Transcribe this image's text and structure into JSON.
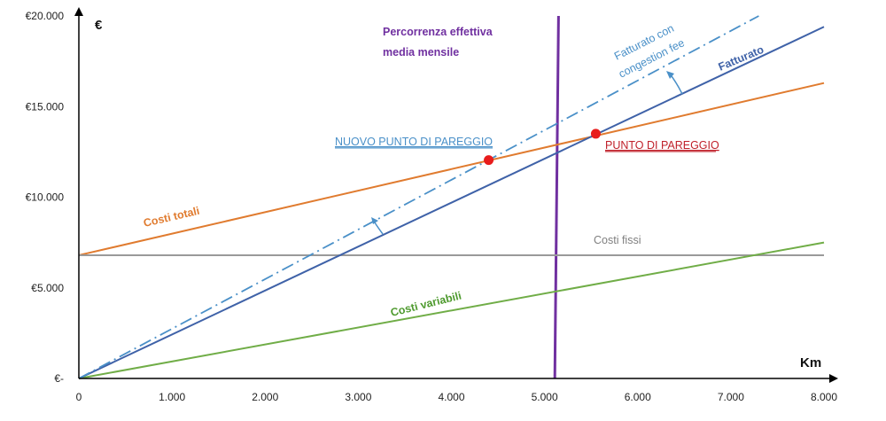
{
  "chart_data": {
    "type": "line",
    "xlabel": "Km",
    "ylabel": "€",
    "xlim": [
      0,
      8000
    ],
    "ylim": [
      0,
      20000
    ],
    "x_ticks": [
      0,
      1000,
      2000,
      3000,
      4000,
      5000,
      6000,
      7000,
      8000
    ],
    "x_tick_labels": [
      "0",
      "1.000",
      "2.000",
      "3.000",
      "4.000",
      "5.000",
      "6.000",
      "7.000",
      "8.000"
    ],
    "y_ticks": [
      0,
      5000,
      10000,
      15000,
      20000
    ],
    "y_tick_labels": [
      "€-",
      "€5.000",
      "€10.000",
      "€15.000",
      "€20.000"
    ],
    "series": [
      {
        "name": "Costi totali",
        "color": "#E07B2F",
        "style": "solid",
        "x": [
          0,
          8000
        ],
        "y": [
          6800,
          16300
        ]
      },
      {
        "name": "Costi fissi",
        "color": "#9A9A9A",
        "style": "solid",
        "x": [
          0,
          8000
        ],
        "y": [
          6800,
          6800
        ]
      },
      {
        "name": "Costi variabili",
        "color": "#70AD47",
        "style": "solid",
        "x": [
          0,
          8000
        ],
        "y": [
          0,
          7500
        ]
      },
      {
        "name": "Fatturato",
        "color": "#3F62A8",
        "style": "solid",
        "x": [
          0,
          8000
        ],
        "y": [
          0,
          19400
        ]
      },
      {
        "name": "Fatturato con congestion fee",
        "color": "#4A90C8",
        "style": "dashdot",
        "x": [
          0,
          7300
        ],
        "y": [
          0,
          20000
        ]
      }
    ],
    "vertical_line": {
      "label_lines": [
        "Percorrenza effettiva",
        "media mensile"
      ],
      "color": "#7030A0",
      "x": [
        5150,
        5110
      ]
    },
    "points": [
      {
        "label": "NUOVO PUNTO DI PAREGGIO",
        "x": 4400,
        "y": 12050,
        "color": "#E81C1C",
        "label_color": "#4A90C8"
      },
      {
        "label": "PUNTO DI PAREGGIO",
        "x": 5550,
        "y": 13500,
        "color": "#E81C1C",
        "label_color": "#C0202A"
      }
    ],
    "annotations": {
      "costi_totali": "Costi totali",
      "costi_fissi": "Costi fissi",
      "costi_variabili": "Costi variabili",
      "fatturato": "Fatturato",
      "fatturato_congestion_line1": "Fatturato con",
      "fatturato_congestion_line2": "congestion fee"
    },
    "grid": false,
    "legend": "none"
  }
}
